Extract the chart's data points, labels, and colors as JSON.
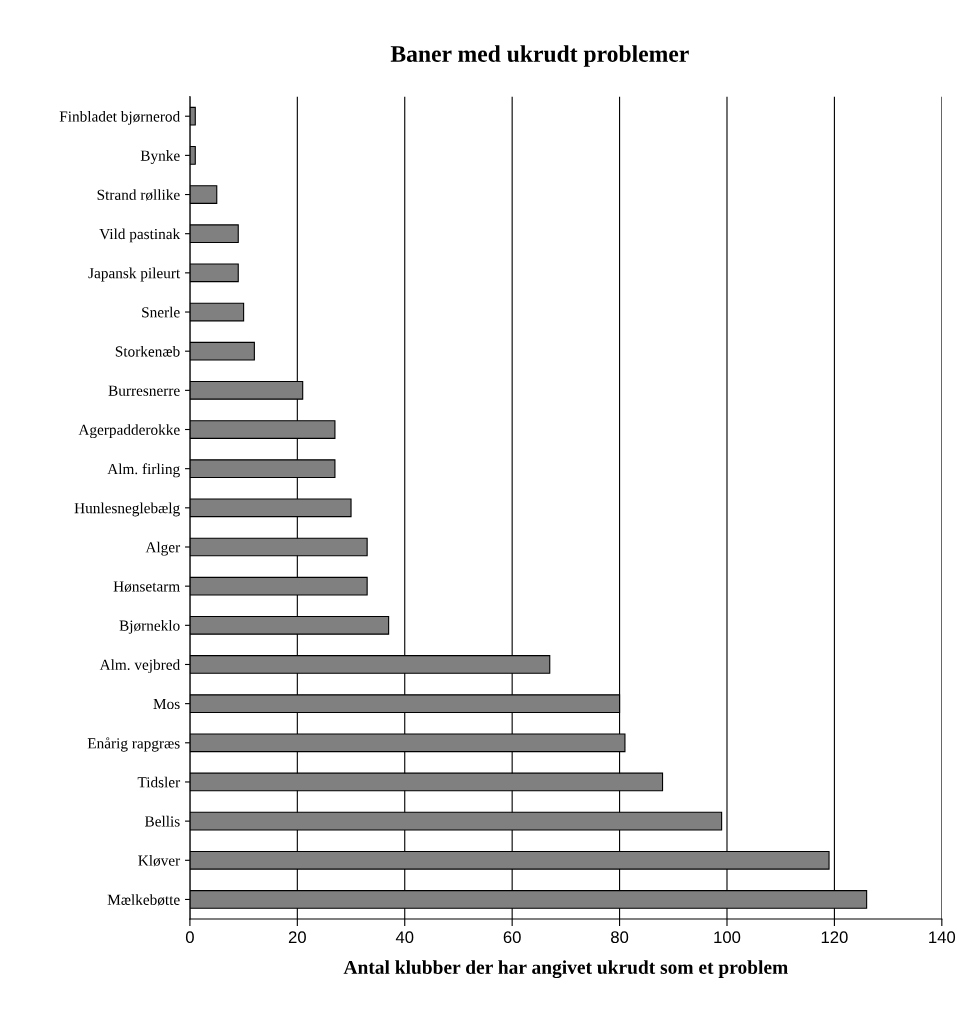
{
  "chart_data": {
    "type": "bar",
    "orientation": "horizontal",
    "title": "Baner med ukrudt problemer",
    "xlabel": "Antal klubber der har angivet ukrudt som et problem",
    "categories": [
      "Finbladet bjørnerod",
      "Bynke",
      "Strand røllike",
      "Vild pastinak",
      "Japansk pileurt",
      "Snerle",
      "Storkenæb",
      "Burresnerre",
      "Agerpadderokke",
      "Alm. firling",
      "Hunlesneglebælg",
      "Alger",
      "Hønsetarm",
      "Bjørneklo",
      "Alm. vejbred",
      "Mos",
      "Enårig rapgræs",
      "Tidsler",
      "Bellis",
      "Kløver",
      "Mælkebøtte"
    ],
    "values": [
      1,
      1,
      5,
      9,
      9,
      10,
      12,
      21,
      27,
      27,
      30,
      33,
      33,
      37,
      67,
      80,
      81,
      88,
      99,
      119,
      126
    ],
    "color": "#808080",
    "xlim": [
      0,
      140
    ],
    "xticks": [
      0,
      20,
      40,
      60,
      80,
      100,
      120,
      140
    ],
    "grid": "x"
  }
}
